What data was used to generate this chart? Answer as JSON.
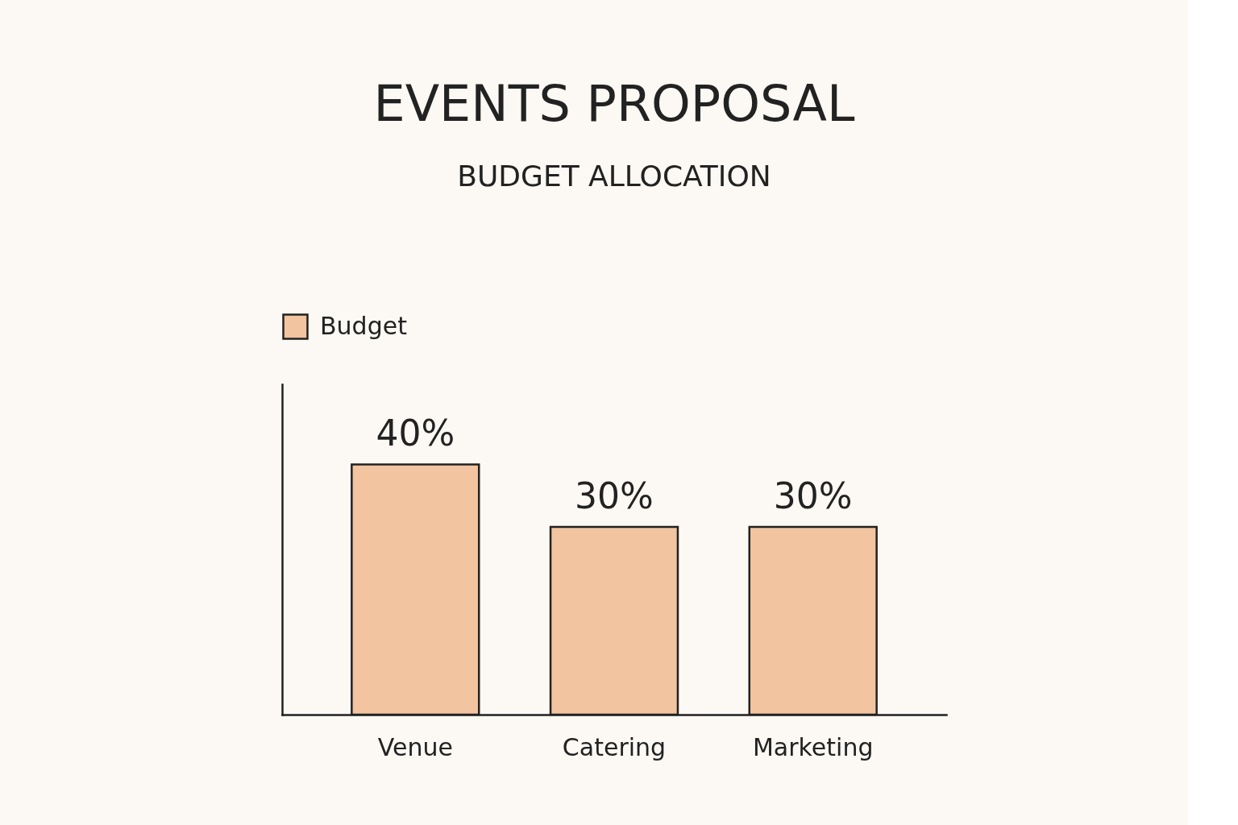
{
  "chart_data": {
    "type": "bar",
    "title": "EVENTS PROPOSAL",
    "subtitle": "BUDGET ALLOCATION",
    "categories": [
      "Venue",
      "Catering",
      "Marketing"
    ],
    "series": [
      {
        "name": "Budget",
        "color": "#f2c4a0",
        "values": [
          40,
          30,
          30
        ],
        "value_labels": [
          "40%",
          "30%",
          "30%"
        ]
      }
    ],
    "legend": "top left",
    "grid": false,
    "tick_labels": "x"
  }
}
